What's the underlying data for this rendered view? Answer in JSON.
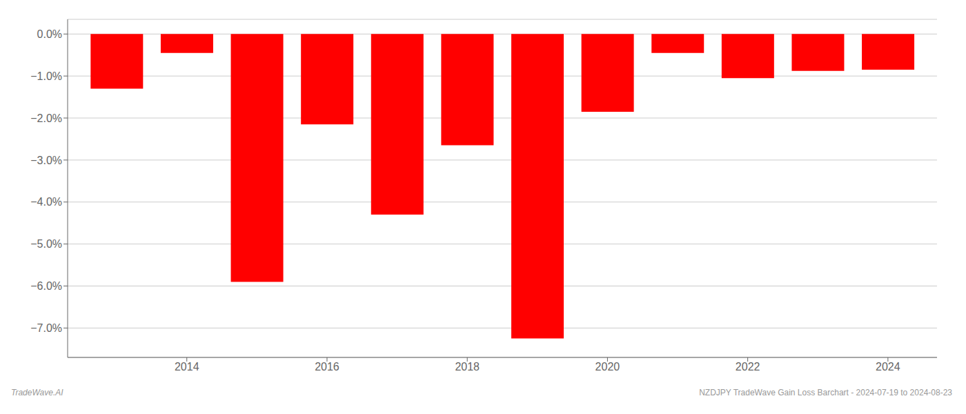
{
  "chart_data": {
    "type": "bar",
    "x": [
      2013,
      2014,
      2015,
      2016,
      2017,
      2018,
      2019,
      2020,
      2021,
      2022,
      2023,
      2024
    ],
    "values": [
      -1.3,
      -0.45,
      -5.9,
      -2.15,
      -4.3,
      -2.65,
      -7.25,
      -1.85,
      -0.45,
      -1.05,
      -0.88,
      -0.85
    ],
    "color": "#ff0000",
    "xlim": [
      2012.3,
      2024.7
    ],
    "xticks": [
      2014,
      2016,
      2018,
      2020,
      2022,
      2024
    ],
    "ylim": [
      -7.7,
      0.35
    ],
    "yticks": [
      {
        "value": 0.0,
        "label": "0.0%"
      },
      {
        "value": -1.0,
        "label": "−1.0%"
      },
      {
        "value": -2.0,
        "label": "−2.0%"
      },
      {
        "value": -3.0,
        "label": "−3.0%"
      },
      {
        "value": -4.0,
        "label": "−4.0%"
      },
      {
        "value": -5.0,
        "label": "−5.0%"
      },
      {
        "value": -6.0,
        "label": "−6.0%"
      },
      {
        "value": -7.0,
        "label": "−7.0%"
      }
    ],
    "grid": true,
    "annotations": [
      "TradeWave.AI",
      "NZDJPY TradeWave Gain Loss Barchart - 2024-07-19 to 2024-08-23"
    ]
  }
}
